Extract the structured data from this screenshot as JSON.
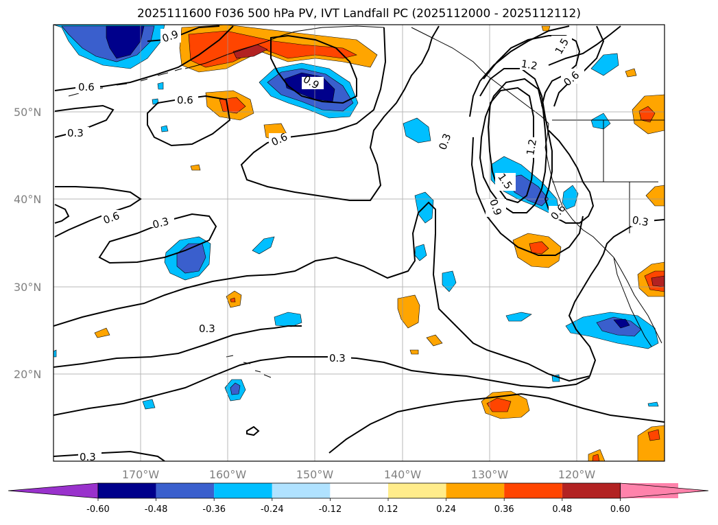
{
  "title": "2025111600 F036 500 hPa PV, IVT Landfall PC (2025112000 - 2025112112)",
  "lat_labels": [
    "50°N",
    "40°N",
    "30°N",
    "20°N"
  ],
  "lon_labels": [
    "170°W",
    "160°W",
    "150°W",
    "140°W",
    "130°W",
    "120°W"
  ],
  "contour_labels": [
    "0.9",
    "0.6",
    "0.6",
    "0.6",
    "0.3",
    "0.6",
    "0.9",
    "0.3",
    "1.2",
    "1.5",
    "0.6",
    "1.2",
    "1.5",
    "0.9",
    "0.6",
    "0.3",
    "0.3",
    "0.3",
    "0.3",
    "0.3"
  ],
  "colorbar": {
    "ticks": [
      "-0.60",
      "-0.48",
      "-0.36",
      "-0.24",
      "-0.12",
      "0.12",
      "0.24",
      "0.36",
      "0.48",
      "0.60"
    ],
    "colors": {
      "under": "#9932CC",
      "bins": [
        "#00008B",
        "#3A5FCD",
        "#00BFFF",
        "#B0E2FF",
        "#FFFFFF",
        "#FFEC8B",
        "#FFA500",
        "#FF4500",
        "#B22222",
        "#FF82AB"
      ],
      "over": "#FF82AB"
    }
  }
}
